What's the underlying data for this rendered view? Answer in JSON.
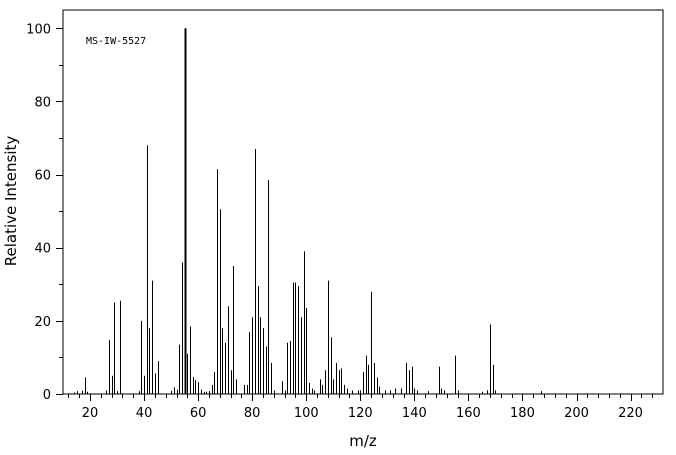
{
  "chart_data": {
    "type": "bar",
    "title": "",
    "annotation": "MS-IW-5527",
    "xlabel": "m/z",
    "ylabel": "Relative Intensity",
    "xlim": [
      10,
      232
    ],
    "ylim": [
      0,
      105
    ],
    "x_ticks_major": [
      20,
      40,
      60,
      80,
      100,
      120,
      140,
      160,
      180,
      200,
      220
    ],
    "y_ticks_major": [
      0,
      20,
      40,
      60,
      80,
      100
    ],
    "grid": false,
    "legend": "none",
    "peaks": [
      {
        "mz": 14,
        "i": 0.4
      },
      {
        "mz": 15,
        "i": 0.8
      },
      {
        "mz": 17,
        "i": 0.9
      },
      {
        "mz": 18,
        "i": 4.5
      },
      {
        "mz": 19,
        "i": 0.6
      },
      {
        "mz": 26,
        "i": 1.0
      },
      {
        "mz": 27,
        "i": 14.8
      },
      {
        "mz": 28,
        "i": 5.0
      },
      {
        "mz": 29,
        "i": 25.0
      },
      {
        "mz": 30,
        "i": 0.8
      },
      {
        "mz": 31,
        "i": 25.5
      },
      {
        "mz": 38,
        "i": 0.8
      },
      {
        "mz": 39,
        "i": 20.0
      },
      {
        "mz": 40,
        "i": 5.0
      },
      {
        "mz": 41,
        "i": 68.0
      },
      {
        "mz": 42,
        "i": 18.0
      },
      {
        "mz": 43,
        "i": 31.0
      },
      {
        "mz": 44,
        "i": 5.6
      },
      {
        "mz": 45,
        "i": 9.0
      },
      {
        "mz": 50,
        "i": 0.9
      },
      {
        "mz": 51,
        "i": 1.8
      },
      {
        "mz": 52,
        "i": 1.2
      },
      {
        "mz": 53,
        "i": 13.5
      },
      {
        "mz": 54,
        "i": 36.0
      },
      {
        "mz": 55,
        "i": 100.0
      },
      {
        "mz": 56,
        "i": 11.0
      },
      {
        "mz": 57,
        "i": 18.5
      },
      {
        "mz": 58,
        "i": 4.6
      },
      {
        "mz": 59,
        "i": 3.8
      },
      {
        "mz": 60,
        "i": 3.2
      },
      {
        "mz": 61,
        "i": 1.2
      },
      {
        "mz": 62,
        "i": 0.6
      },
      {
        "mz": 63,
        "i": 0.6
      },
      {
        "mz": 64,
        "i": 0.8
      },
      {
        "mz": 65,
        "i": 2.5
      },
      {
        "mz": 66,
        "i": 6.0
      },
      {
        "mz": 67,
        "i": 61.5
      },
      {
        "mz": 68,
        "i": 50.5
      },
      {
        "mz": 69,
        "i": 18.0
      },
      {
        "mz": 70,
        "i": 14.0
      },
      {
        "mz": 71,
        "i": 24.0
      },
      {
        "mz": 72,
        "i": 6.5
      },
      {
        "mz": 73,
        "i": 35.0
      },
      {
        "mz": 74,
        "i": 4.0
      },
      {
        "mz": 77,
        "i": 2.5
      },
      {
        "mz": 78,
        "i": 2.5
      },
      {
        "mz": 79,
        "i": 17.0
      },
      {
        "mz": 80,
        "i": 21.0
      },
      {
        "mz": 81,
        "i": 67.0
      },
      {
        "mz": 82,
        "i": 29.5
      },
      {
        "mz": 83,
        "i": 21.0
      },
      {
        "mz": 84,
        "i": 18.0
      },
      {
        "mz": 85,
        "i": 13.0
      },
      {
        "mz": 86,
        "i": 58.5
      },
      {
        "mz": 87,
        "i": 8.5
      },
      {
        "mz": 88,
        "i": 1.0
      },
      {
        "mz": 91,
        "i": 3.5
      },
      {
        "mz": 92,
        "i": 1.0
      },
      {
        "mz": 93,
        "i": 14.0
      },
      {
        "mz": 94,
        "i": 14.5
      },
      {
        "mz": 95,
        "i": 30.5
      },
      {
        "mz": 96,
        "i": 30.5
      },
      {
        "mz": 97,
        "i": 29.5
      },
      {
        "mz": 98,
        "i": 21.0
      },
      {
        "mz": 99,
        "i": 39.0
      },
      {
        "mz": 100,
        "i": 23.5
      },
      {
        "mz": 101,
        "i": 3.0
      },
      {
        "mz": 102,
        "i": 1.5
      },
      {
        "mz": 103,
        "i": 1.0
      },
      {
        "mz": 105,
        "i": 4.0
      },
      {
        "mz": 106,
        "i": 2.5
      },
      {
        "mz": 107,
        "i": 6.5
      },
      {
        "mz": 108,
        "i": 31.0
      },
      {
        "mz": 109,
        "i": 15.5
      },
      {
        "mz": 110,
        "i": 4.0
      },
      {
        "mz": 111,
        "i": 8.5
      },
      {
        "mz": 112,
        "i": 6.5
      },
      {
        "mz": 113,
        "i": 7.0
      },
      {
        "mz": 114,
        "i": 2.5
      },
      {
        "mz": 115,
        "i": 1.5
      },
      {
        "mz": 117,
        "i": 1.0
      },
      {
        "mz": 119,
        "i": 1.0
      },
      {
        "mz": 120,
        "i": 1.0
      },
      {
        "mz": 121,
        "i": 6.0
      },
      {
        "mz": 122,
        "i": 10.5
      },
      {
        "mz": 123,
        "i": 8.0
      },
      {
        "mz": 124,
        "i": 28.0
      },
      {
        "mz": 125,
        "i": 8.5
      },
      {
        "mz": 126,
        "i": 4.5
      },
      {
        "mz": 127,
        "i": 2.0
      },
      {
        "mz": 129,
        "i": 1.0
      },
      {
        "mz": 131,
        "i": 1.0
      },
      {
        "mz": 133,
        "i": 1.5
      },
      {
        "mz": 135,
        "i": 1.5
      },
      {
        "mz": 137,
        "i": 8.5
      },
      {
        "mz": 138,
        "i": 6.5
      },
      {
        "mz": 139,
        "i": 7.5
      },
      {
        "mz": 140,
        "i": 1.5
      },
      {
        "mz": 141,
        "i": 1.0
      },
      {
        "mz": 145,
        "i": 0.8
      },
      {
        "mz": 149,
        "i": 7.5
      },
      {
        "mz": 150,
        "i": 1.5
      },
      {
        "mz": 151,
        "i": 1.0
      },
      {
        "mz": 155,
        "i": 10.5
      },
      {
        "mz": 156,
        "i": 1.0
      },
      {
        "mz": 165,
        "i": 0.6
      },
      {
        "mz": 167,
        "i": 1.0
      },
      {
        "mz": 168,
        "i": 19.0
      },
      {
        "mz": 169,
        "i": 8.0
      },
      {
        "mz": 170,
        "i": 1.0
      },
      {
        "mz": 187,
        "i": 0.8
      }
    ]
  }
}
